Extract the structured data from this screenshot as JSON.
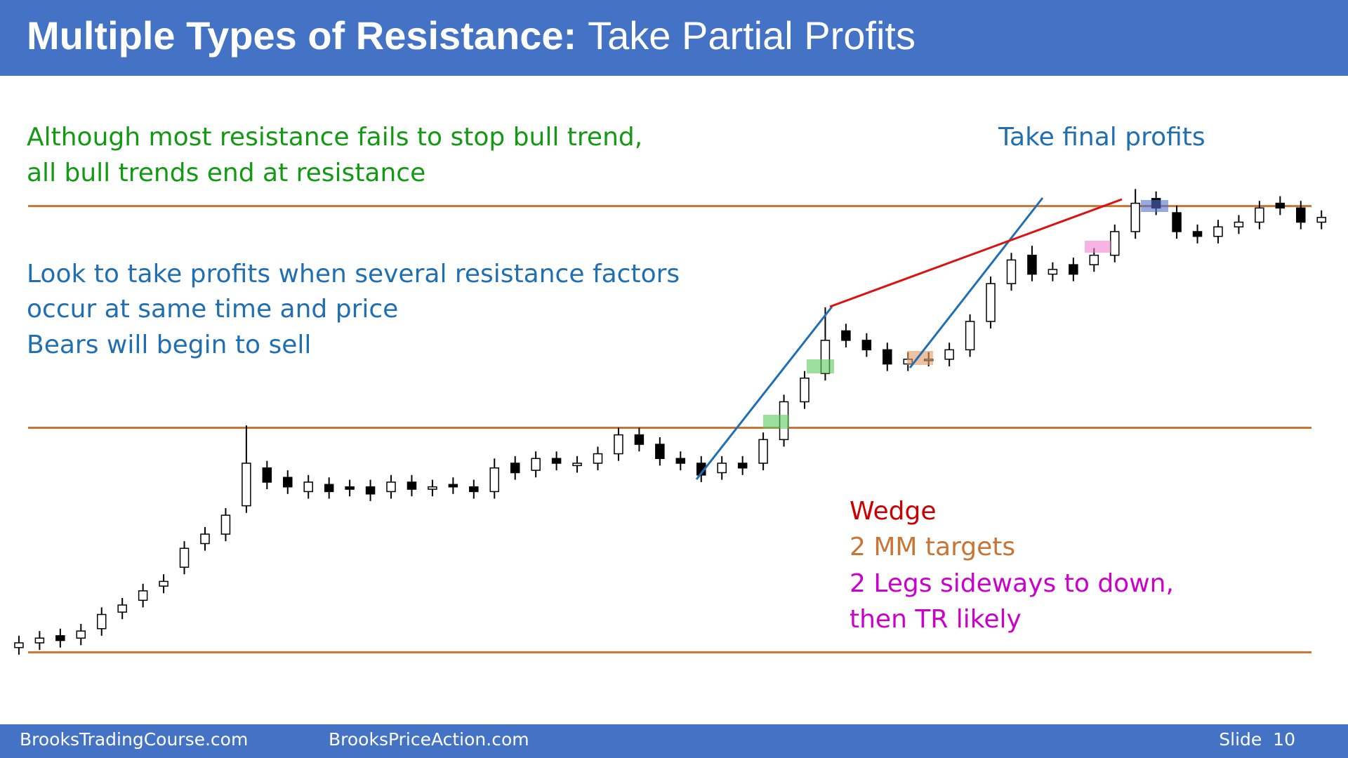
{
  "header": {
    "title_bold": "Multiple Types of Resistance:",
    "title_rest": "Take Partial Profits"
  },
  "chart_data": {
    "type": "candlestick",
    "ylim": [
      0,
      100
    ],
    "open": [
      3,
      4,
      5.5,
      5,
      7,
      10.5,
      13,
      16,
      20,
      25,
      27,
      33,
      41,
      39,
      36,
      37.5,
      37,
      37,
      36,
      38,
      36.5,
      37.5,
      37,
      36,
      42,
      40.5,
      43,
      41.5,
      42,
      44,
      48,
      46,
      43,
      42,
      40,
      42,
      42,
      47,
      55,
      61,
      70,
      68,
      66,
      63,
      64,
      64,
      66,
      72,
      80,
      86,
      82,
      84,
      84,
      86,
      91,
      98,
      95,
      91,
      90,
      92,
      93,
      97,
      96,
      93
    ],
    "high": [
      5.5,
      6.5,
      7,
      8,
      11.5,
      13.5,
      16.5,
      18.5,
      25.5,
      28.5,
      32.5,
      50,
      42.5,
      40.5,
      39.5,
      39,
      38.5,
      38.5,
      39.5,
      39.5,
      38.5,
      39,
      38.5,
      43,
      43.5,
      44.5,
      44.5,
      43.5,
      45.5,
      49.5,
      49.5,
      47.5,
      44.5,
      43.5,
      43.5,
      43.5,
      48.5,
      56.5,
      61.5,
      75,
      71.5,
      69.5,
      67.5,
      65.5,
      65.5,
      67.5,
      73.5,
      81.5,
      86.5,
      88,
      84.5,
      85.5,
      87.5,
      92.5,
      100,
      99.5,
      96.5,
      92.5,
      93.5,
      94.5,
      97.5,
      98.5,
      97.5,
      95.5
    ],
    "low": [
      1.5,
      2.5,
      3,
      3.5,
      5.5,
      9,
      11.5,
      14.5,
      18.5,
      23.5,
      25.5,
      31.5,
      36.5,
      35.5,
      34.5,
      34.5,
      35,
      34,
      34.5,
      35,
      35,
      35.5,
      34.5,
      34.5,
      38.5,
      39,
      40.5,
      40,
      40.5,
      42.5,
      44.5,
      41.5,
      40.5,
      38,
      38.5,
      39.5,
      40.5,
      45.5,
      53.5,
      59.5,
      66.5,
      64.5,
      61.5,
      61.5,
      62.5,
      62.5,
      64.5,
      70.5,
      78.5,
      80.5,
      80.5,
      80.5,
      82.5,
      84.5,
      89.5,
      94.5,
      89.5,
      88.5,
      88.5,
      90.5,
      91.5,
      94.5,
      91.5,
      91.5
    ],
    "close": [
      4,
      5,
      4.5,
      6.5,
      10,
      12,
      15,
      17,
      24,
      27,
      31,
      42,
      38,
      37,
      38,
      36,
      36.5,
      35.5,
      38,
      36.5,
      37,
      37,
      36,
      41,
      40,
      43,
      42,
      42,
      44,
      48,
      46,
      43,
      42,
      39.5,
      42,
      41,
      47,
      55,
      60,
      68,
      68,
      66,
      63,
      64,
      64,
      66,
      72,
      80,
      85,
      82,
      83,
      82,
      86,
      91,
      97,
      96,
      91,
      90,
      92,
      93,
      96,
      96,
      93,
      94
    ],
    "levels": [
      2,
      49.5,
      96.4
    ]
  },
  "notes": {
    "green": [
      "Although most resistance fails to stop bull trend,",
      "all bull trends end at resistance"
    ],
    "final": "Take final profits",
    "blue": [
      "Look to take profits when several resistance factors",
      "occur at same time and price",
      "Bears will begin to sell"
    ],
    "legend": [
      "Wedge",
      "2 MM targets",
      "2 Legs sideways to down,",
      "then TR likely"
    ]
  },
  "footer": {
    "left": "BrooksTradingCourse.com",
    "middle": "BrooksPriceAction.com",
    "slide": "Slide  10"
  }
}
